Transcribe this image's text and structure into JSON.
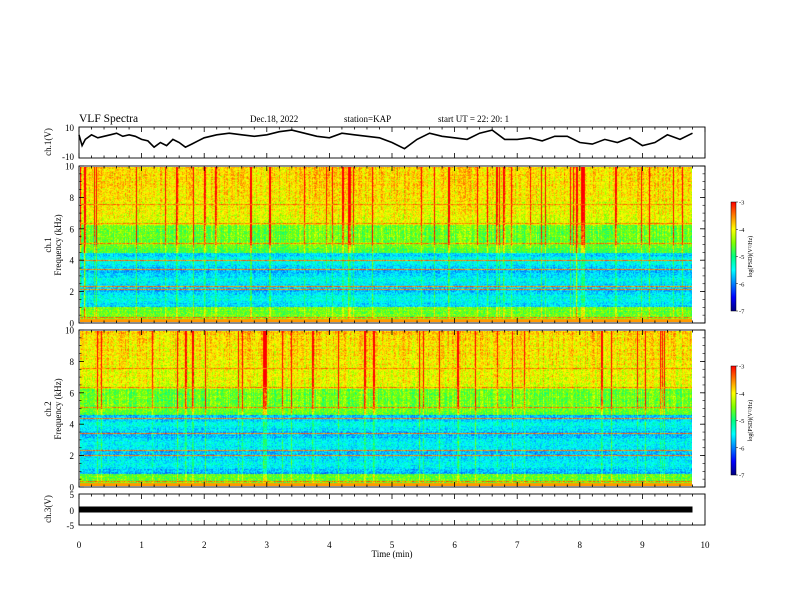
{
  "header": {
    "title": "VLF Spectra",
    "date": "Dec.18, 2022",
    "station": "station=KAP",
    "start": "start  UT  =   22: 20: 1"
  },
  "colors": {
    "ch1_trace": "#000000",
    "ch3_trace": "#000000",
    "colormap": [
      "#000080",
      "#0000ff",
      "#0080ff",
      "#00ffff",
      "#00ff80",
      "#80ff00",
      "#ffff00",
      "#ff8000",
      "#ff0000",
      "#ffffff"
    ]
  },
  "chart_data": [
    {
      "type": "line",
      "panel": "ch1",
      "ylabel": "ch.1(V)",
      "ylim": [
        -10,
        10
      ],
      "yticks": [
        "10",
        "-10"
      ],
      "xlim": [
        0,
        10
      ],
      "x": [
        0.0,
        0.05,
        0.1,
        0.2,
        0.3,
        0.4,
        0.5,
        0.6,
        0.7,
        0.8,
        0.9,
        1.0,
        1.1,
        1.2,
        1.3,
        1.4,
        1.5,
        1.6,
        1.7,
        1.8,
        1.9,
        2.0,
        2.2,
        2.4,
        2.6,
        2.8,
        3.0,
        3.2,
        3.4,
        3.6,
        3.8,
        4.0,
        4.2,
        4.4,
        4.6,
        4.8,
        5.0,
        5.2,
        5.4,
        5.6,
        5.8,
        6.0,
        6.2,
        6.4,
        6.6,
        6.8,
        7.0,
        7.2,
        7.4,
        7.6,
        7.8,
        8.0,
        8.2,
        8.4,
        8.6,
        8.8,
        9.0,
        9.2,
        9.4,
        9.6,
        9.8
      ],
      "values": [
        5,
        -2,
        2,
        5,
        3,
        4,
        5,
        6,
        4,
        5,
        4,
        2,
        1,
        -3,
        0,
        -2,
        2,
        0,
        -3,
        -1,
        1,
        3,
        5,
        6,
        5,
        4,
        5,
        7,
        8,
        6,
        4,
        3,
        6,
        5,
        4,
        3,
        0,
        -4,
        2,
        6,
        4,
        3,
        2,
        6,
        8,
        2,
        2,
        3,
        1,
        4,
        4,
        0,
        -1,
        2,
        0,
        3,
        -2,
        0,
        5,
        2,
        6
      ]
    },
    {
      "type": "heatmap",
      "panel": "ch1 spectrogram",
      "ylabel_line1": "ch.1",
      "ylabel_line2": "Frequency  (kHz)",
      "ylim": [
        0,
        10
      ],
      "yticks": [
        "0",
        "2",
        "4",
        "6",
        "8",
        "10"
      ],
      "xlim": [
        0,
        10
      ],
      "colorbar": {
        "range": [
          -7,
          -3
        ],
        "ticks": [
          "-3",
          "-4",
          "-5",
          "-6",
          "-7"
        ],
        "label": "log(PSD)(V²/Hz)"
      },
      "quiet_band_khz": [
        1.0,
        4.5
      ],
      "persistent_lines_khz": [
        0.3,
        2.1,
        2.3,
        3.4,
        4.0,
        5.1,
        6.4,
        7.6
      ]
    },
    {
      "type": "heatmap",
      "panel": "ch2 spectrogram",
      "ylabel_line1": "ch.2",
      "ylabel_line2": "Frequency  (kHz)",
      "ylim": [
        0,
        10
      ],
      "yticks": [
        "0",
        "2",
        "4",
        "6",
        "8",
        "10"
      ],
      "xlim": [
        0,
        10
      ],
      "colorbar": {
        "range": [
          -7,
          -3
        ],
        "ticks": [
          "-3",
          "-4",
          "-5",
          "-6",
          "-7"
        ],
        "label": "log(PSD)(V²/Hz)"
      },
      "quiet_band_khz": [
        0.8,
        4.6
      ],
      "persistent_lines_khz": [
        0.3,
        2.0,
        2.3,
        3.4,
        4.4,
        5.1,
        6.4,
        7.6
      ]
    },
    {
      "type": "line",
      "panel": "ch3",
      "ylabel": "ch.3(V)",
      "ylim": [
        -5,
        5
      ],
      "yticks": [
        "5",
        "0",
        "-5"
      ],
      "xlim": [
        0,
        10
      ],
      "x": [
        0,
        9.8
      ],
      "values": [
        0,
        0
      ]
    }
  ],
  "xaxis": {
    "label": "Time  (min)",
    "ticks": [
      "0",
      "1",
      "2",
      "3",
      "4",
      "5",
      "6",
      "7",
      "8",
      "9",
      "10"
    ]
  }
}
